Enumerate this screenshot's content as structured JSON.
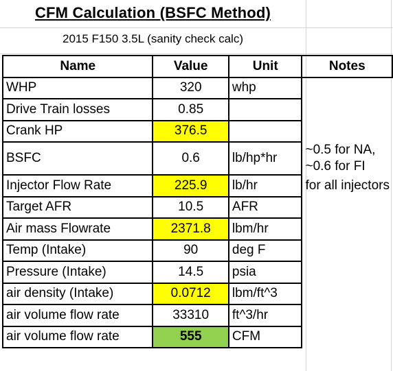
{
  "title": "CFM Calculation (BSFC Method)",
  "subtitle": "2015 F150 3.5L (sanity check calc)",
  "headers": {
    "name": "Name",
    "value": "Value",
    "unit": "Unit",
    "notes": "Notes"
  },
  "rows": [
    {
      "name": "WHP",
      "value": "320",
      "unit": "whp",
      "note": ""
    },
    {
      "name": "Drive Train losses",
      "value": "0.85",
      "unit": "",
      "note": ""
    },
    {
      "name": "Crank HP",
      "value": "376.5",
      "unit": "",
      "note": ""
    },
    {
      "name": "BSFC",
      "value": "0.6",
      "unit": "lb/hp*hr",
      "note_lines": [
        "~0.5 for NA,",
        "~0.6 for FI"
      ]
    },
    {
      "name": "Injector Flow Rate",
      "value": "225.9",
      "unit": "lb/hr",
      "note": "for all injectors"
    },
    {
      "name": "Target AFR",
      "value": "10.5",
      "unit": "AFR",
      "note": ""
    },
    {
      "name": "Air mass Flowrate",
      "value": "2371.8",
      "unit": "lbm/hr",
      "note": ""
    },
    {
      "name": "Temp (Intake)",
      "value": "90",
      "unit": "deg F",
      "note": ""
    },
    {
      "name": "Pressure (Intake)",
      "value": "14.5",
      "unit": "psia",
      "note": ""
    },
    {
      "name": "air density (Intake)",
      "value": "0.0712",
      "unit": "lbm/ft^3",
      "note": ""
    },
    {
      "name": "air volume flow rate",
      "value": "33310",
      "unit": "ft^3/hr",
      "note": ""
    },
    {
      "name": "air volume flow rate",
      "value": "555",
      "unit": "CFM",
      "note": ""
    }
  ],
  "highlight_colors": {
    "computed": "#ffff00",
    "result": "#92d050"
  }
}
